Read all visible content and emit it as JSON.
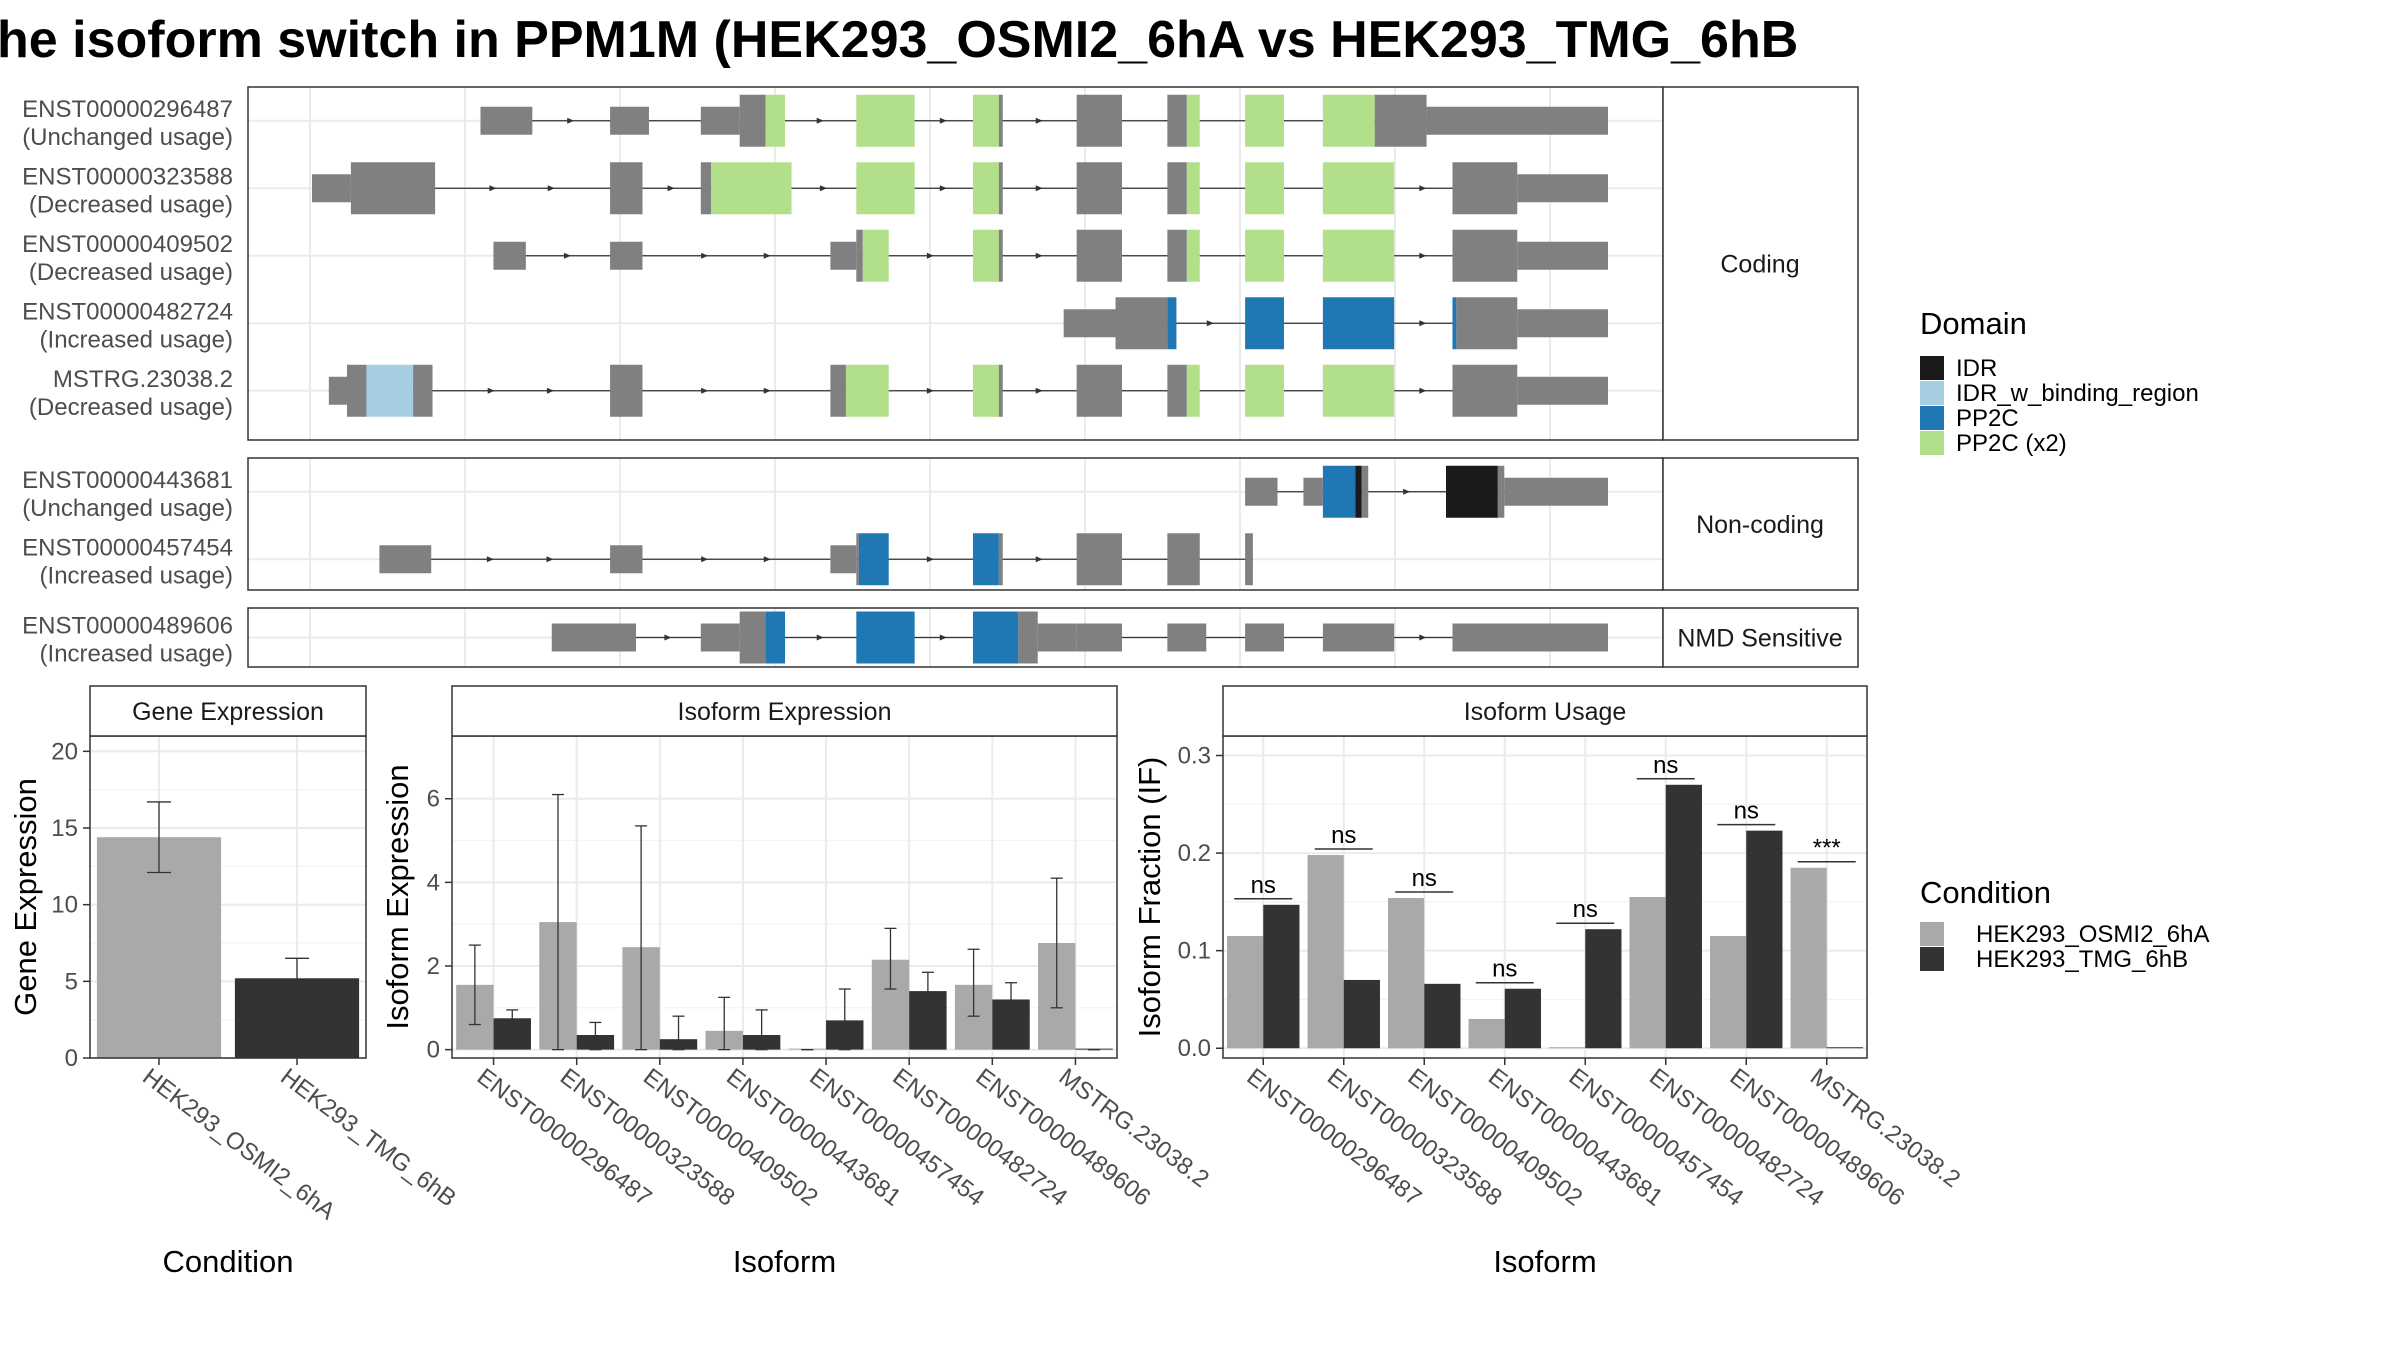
{
  "title": "he isoform switch in PPM1M (HEK293_OSMI2_6hA vs HEK293_TMG_6hB",
  "colors": {
    "exon": "#808080",
    "IDR": "#1a1a1a",
    "IDR_w_binding_region": "#a6cee3",
    "PP2C": "#1f78b4",
    "PP2C (x2)": "#b2df8a",
    "cond1": "#a9a9a9",
    "cond2": "#333333"
  },
  "legend_domain": {
    "title": "Domain",
    "items": [
      {
        "key": "IDR",
        "label": "IDR"
      },
      {
        "key": "IDR_w_binding_region",
        "label": "IDR_w_binding_region"
      },
      {
        "key": "PP2C",
        "label": "PP2C"
      },
      {
        "key": "PP2C (x2)",
        "label": "PP2C (x2)"
      }
    ]
  },
  "legend_condition": {
    "title": "Condition",
    "items": [
      "HEK293_OSMI2_6hA",
      "HEK293_TMG_6hB"
    ]
  },
  "panels": [
    {
      "label": "Coding",
      "transcripts": [
        {
          "name": "ENST00000296487",
          "usage": "(Unchanged usage)",
          "start": 13,
          "end": 100,
          "features": [
            [
              13,
              17,
              "exon",
              "thin"
            ],
            [
              23,
              26,
              "exon",
              "thin"
            ],
            [
              30,
              33,
              "exon",
              "thin"
            ],
            [
              33,
              35,
              "exon",
              "thick"
            ],
            [
              35,
              36.5,
              "PP2C (x2)",
              "thick"
            ],
            [
              42,
              46.5,
              "PP2C (x2)",
              "thick"
            ],
            [
              51,
              53,
              "PP2C (x2)",
              "thick"
            ],
            [
              53,
              53.3,
              "exon",
              "thick"
            ],
            [
              59,
              62.5,
              "exon",
              "thick"
            ],
            [
              66,
              67.5,
              "exon",
              "thick"
            ],
            [
              67.5,
              68.5,
              "PP2C (x2)",
              "thick"
            ],
            [
              72,
              75,
              "PP2C (x2)",
              "thick"
            ],
            [
              78,
              82,
              "PP2C (x2)",
              "thick"
            ],
            [
              82,
              86,
              "exon",
              "thick"
            ],
            [
              86,
              100,
              "exon",
              "thin"
            ]
          ]
        },
        {
          "name": "ENST00000323588",
          "usage": "(Decreased usage)",
          "start": 0,
          "end": 100,
          "features": [
            [
              0,
              3,
              "exon",
              "thin"
            ],
            [
              3,
              9.5,
              "exon",
              "thick"
            ],
            [
              23,
              25.5,
              "exon",
              "thick"
            ],
            [
              30,
              30.8,
              "exon",
              "thick"
            ],
            [
              30.8,
              37,
              "PP2C (x2)",
              "thick"
            ],
            [
              42,
              46.5,
              "PP2C (x2)",
              "thick"
            ],
            [
              51,
              53,
              "PP2C (x2)",
              "thick"
            ],
            [
              53,
              53.3,
              "exon",
              "thick"
            ],
            [
              59,
              62.5,
              "exon",
              "thick"
            ],
            [
              66,
              67.5,
              "exon",
              "thick"
            ],
            [
              67.5,
              68.5,
              "PP2C (x2)",
              "thick"
            ],
            [
              72,
              75,
              "PP2C (x2)",
              "thick"
            ],
            [
              78,
              83.5,
              "PP2C (x2)",
              "thick"
            ],
            [
              88,
              93,
              "exon",
              "thick"
            ],
            [
              93,
              100,
              "exon",
              "thin"
            ]
          ]
        },
        {
          "name": "ENST00000409502",
          "usage": "(Decreased usage)",
          "start": 14,
          "end": 100,
          "features": [
            [
              14,
              16.5,
              "exon",
              "thin"
            ],
            [
              23,
              25.5,
              "exon",
              "thin"
            ],
            [
              40,
              42,
              "exon",
              "thin"
            ],
            [
              42,
              42.5,
              "exon",
              "thick"
            ],
            [
              42.5,
              44.5,
              "PP2C (x2)",
              "thick"
            ],
            [
              51,
              53,
              "PP2C (x2)",
              "thick"
            ],
            [
              53,
              53.3,
              "exon",
              "thick"
            ],
            [
              59,
              62.5,
              "exon",
              "thick"
            ],
            [
              66,
              67.5,
              "exon",
              "thick"
            ],
            [
              67.5,
              68.5,
              "PP2C (x2)",
              "thick"
            ],
            [
              72,
              75,
              "PP2C (x2)",
              "thick"
            ],
            [
              78,
              83.5,
              "PP2C (x2)",
              "thick"
            ],
            [
              88,
              93,
              "exon",
              "thick"
            ],
            [
              93,
              100,
              "exon",
              "thin"
            ]
          ]
        },
        {
          "name": "ENST00000482724",
          "usage": "(Increased usage)",
          "start": 58,
          "end": 100,
          "features": [
            [
              58,
              62,
              "exon",
              "thin"
            ],
            [
              62,
              66,
              "exon",
              "thick"
            ],
            [
              66,
              66.7,
              "PP2C",
              "thick"
            ],
            [
              72,
              75,
              "PP2C",
              "thick"
            ],
            [
              78,
              83.5,
              "PP2C",
              "thick"
            ],
            [
              88,
              88.3,
              "PP2C",
              "thick"
            ],
            [
              88.3,
              93,
              "exon",
              "thick"
            ],
            [
              93,
              100,
              "exon",
              "thin"
            ]
          ]
        },
        {
          "name": "MSTRG.23038.2",
          "usage": "(Decreased usage)",
          "start": 1.3,
          "end": 100,
          "features": [
            [
              1.3,
              2.7,
              "exon",
              "thin"
            ],
            [
              2.7,
              4.2,
              "exon",
              "thick"
            ],
            [
              4.2,
              7.8,
              "IDR_w_binding_region",
              "thick"
            ],
            [
              7.8,
              9.3,
              "exon",
              "thick"
            ],
            [
              23,
              25.5,
              "exon",
              "thick"
            ],
            [
              40,
              41.2,
              "exon",
              "thick"
            ],
            [
              41.2,
              44.5,
              "PP2C (x2)",
              "thick"
            ],
            [
              51,
              53,
              "PP2C (x2)",
              "thick"
            ],
            [
              53,
              53.3,
              "exon",
              "thick"
            ],
            [
              59,
              62.5,
              "exon",
              "thick"
            ],
            [
              66,
              67.5,
              "exon",
              "thick"
            ],
            [
              67.5,
              68.5,
              "PP2C (x2)",
              "thick"
            ],
            [
              72,
              75,
              "PP2C (x2)",
              "thick"
            ],
            [
              78,
              83.5,
              "PP2C (x2)",
              "thick"
            ],
            [
              88,
              93,
              "exon",
              "thick"
            ],
            [
              93,
              100,
              "exon",
              "thin"
            ]
          ]
        }
      ]
    },
    {
      "label": "Non-coding",
      "transcripts": [
        {
          "name": "ENST00000443681",
          "usage": "(Unchanged usage)",
          "start": 72,
          "end": 100,
          "features": [
            [
              72,
              74.5,
              "exon",
              "thin"
            ],
            [
              76.5,
              78,
              "exon",
              "thin"
            ],
            [
              78,
              80.5,
              "PP2C",
              "thick"
            ],
            [
              80.5,
              81,
              "IDR",
              "thick"
            ],
            [
              81,
              81.5,
              "exon",
              "thick"
            ],
            [
              87.5,
              91.5,
              "IDR",
              "thick"
            ],
            [
              91.5,
              92,
              "exon",
              "thick"
            ],
            [
              92,
              100,
              "exon",
              "thin"
            ]
          ]
        },
        {
          "name": "ENST00000457454",
          "usage": "(Increased usage)",
          "start": 5.2,
          "end": 72.6,
          "features": [
            [
              5.2,
              9.2,
              "exon",
              "thin"
            ],
            [
              23,
              25.5,
              "exon",
              "thin"
            ],
            [
              40,
              42,
              "exon",
              "thin"
            ],
            [
              42,
              42.2,
              "exon",
              "thick"
            ],
            [
              42.2,
              44.5,
              "PP2C",
              "thick"
            ],
            [
              51,
              53,
              "PP2C",
              "thick"
            ],
            [
              53,
              53.3,
              "exon",
              "thick"
            ],
            [
              59,
              62.5,
              "exon",
              "thick"
            ],
            [
              66,
              68.5,
              "exon",
              "thick"
            ],
            [
              72,
              72.6,
              "exon",
              "thick"
            ]
          ]
        }
      ]
    },
    {
      "label": "NMD Sensitive",
      "transcripts": [
        {
          "name": "ENST00000489606",
          "usage": "(Increased usage)",
          "start": 18.5,
          "end": 100,
          "features": [
            [
              18.5,
              25,
              "exon",
              "thin"
            ],
            [
              30,
              33,
              "exon",
              "thin"
            ],
            [
              33,
              35,
              "exon",
              "thick"
            ],
            [
              35,
              36.5,
              "PP2C",
              "thick"
            ],
            [
              42,
              46.5,
              "PP2C",
              "thick"
            ],
            [
              51,
              54.5,
              "PP2C",
              "thick"
            ],
            [
              54.5,
              56,
              "exon",
              "thick"
            ],
            [
              56,
              59,
              "exon",
              "thin"
            ],
            [
              59,
              62.5,
              "exon",
              "thin"
            ],
            [
              66,
              69,
              "exon",
              "thin"
            ],
            [
              72,
              75,
              "exon",
              "thin"
            ],
            [
              78,
              83.5,
              "exon",
              "thin"
            ],
            [
              88,
              100,
              "exon",
              "thin"
            ]
          ]
        }
      ]
    }
  ],
  "chart_data": [
    {
      "type": "bar",
      "title": "Gene Expression",
      "xlabel": "Condition",
      "ylabel": "Gene Expression",
      "ylim": [
        0,
        21
      ],
      "yticks": [
        0,
        5,
        10,
        15,
        20
      ],
      "categories": [
        "HEK293_OSMI2_6hA",
        "HEK293_TMG_6hB"
      ],
      "values": [
        14.4,
        5.2
      ],
      "errors": [
        [
          12.1,
          16.7
        ],
        [
          4.0,
          6.5
        ]
      ]
    },
    {
      "type": "bar",
      "title": "Isoform Expression",
      "xlabel": "Isoform",
      "ylabel": "Isoform Expression",
      "ylim": [
        -0.2,
        7.5
      ],
      "yticks": [
        0,
        2,
        4,
        6
      ],
      "categories": [
        "ENST00000296487",
        "ENST00000323588",
        "ENST00000409502",
        "ENST00000443681",
        "ENST00000457454",
        "ENST00000482724",
        "ENST00000489606",
        "MSTRG.23038.2"
      ],
      "series": [
        {
          "name": "HEK293_OSMI2_6hA",
          "values": [
            1.55,
            3.05,
            2.45,
            0.45,
            0.0,
            2.15,
            1.55,
            2.55
          ],
          "errors": [
            [
              0.6,
              2.5
            ],
            [
              0.0,
              6.1
            ],
            [
              0.0,
              5.35
            ],
            [
              0.0,
              1.25
            ],
            [
              0.0,
              0.0
            ],
            [
              1.45,
              2.9
            ],
            [
              0.8,
              2.4
            ],
            [
              1.0,
              4.1
            ]
          ]
        },
        {
          "name": "HEK293_TMG_6hB",
          "values": [
            0.75,
            0.35,
            0.25,
            0.35,
            0.7,
            1.4,
            1.2,
            0.0
          ],
          "errors": [
            [
              0.55,
              0.95
            ],
            [
              0.0,
              0.65
            ],
            [
              0.0,
              0.8
            ],
            [
              0.0,
              0.95
            ],
            [
              0.0,
              1.45
            ],
            [
              1.0,
              1.85
            ],
            [
              0.8,
              1.6
            ],
            [
              0.0,
              0.0
            ]
          ]
        }
      ]
    },
    {
      "type": "bar",
      "title": "Isoform Usage",
      "xlabel": "Isoform",
      "ylabel": "Isoform Fraction (IF)",
      "ylim": [
        -0.01,
        0.32
      ],
      "yticks": [
        0.0,
        0.1,
        0.2,
        0.3
      ],
      "ytick_labels": [
        "0.0",
        "0.1",
        "0.2",
        "0.3"
      ],
      "categories": [
        "ENST00000296487",
        "ENST00000323588",
        "ENST00000409502",
        "ENST00000443681",
        "ENST00000457454",
        "ENST00000482724",
        "ENST00000489606",
        "MSTRG.23038.2"
      ],
      "series": [
        {
          "name": "HEK293_OSMI2_6hA",
          "values": [
            0.115,
            0.198,
            0.154,
            0.03,
            0.0,
            0.155,
            0.115,
            0.185
          ]
        },
        {
          "name": "HEK293_TMG_6hB",
          "values": [
            0.147,
            0.07,
            0.066,
            0.061,
            0.122,
            0.27,
            0.223,
            0.0
          ]
        }
      ],
      "significance": [
        "ns",
        "ns",
        "ns",
        "ns",
        "ns",
        "ns",
        "ns",
        "***"
      ]
    }
  ]
}
